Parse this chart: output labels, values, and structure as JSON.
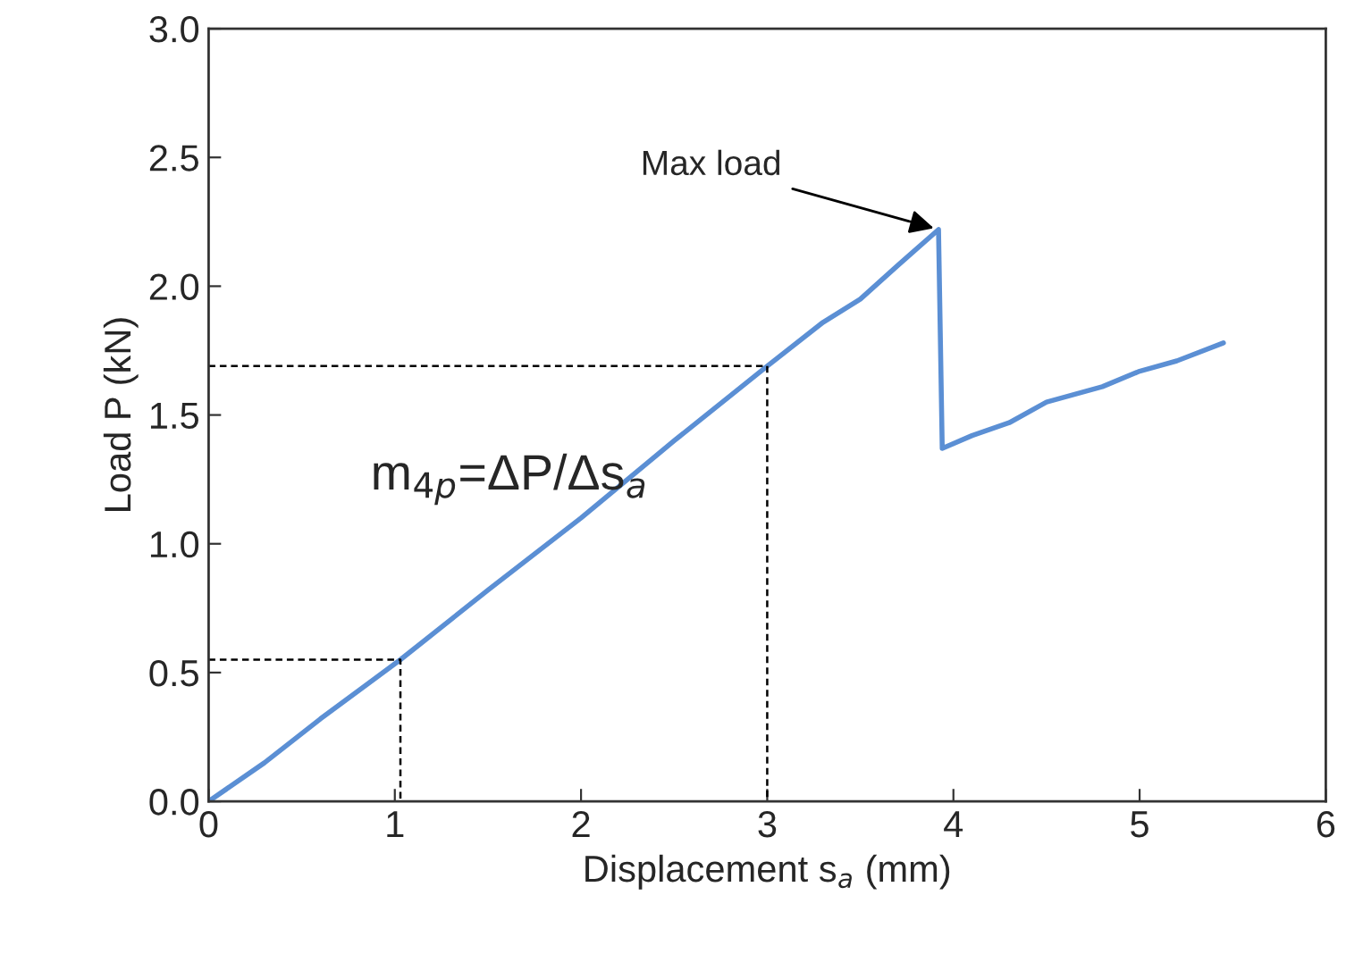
{
  "chart_data": {
    "type": "line",
    "xlabel": "Displacement s$_{a}$ (mm)",
    "ylabel": "Load P (kN)",
    "xlim": [
      0,
      6
    ],
    "ylim": [
      0,
      3.0
    ],
    "xticks": [
      0,
      1,
      2,
      3,
      4,
      5,
      6
    ],
    "yticks": [
      {
        "value": 0,
        "label": "0.0"
      },
      {
        "value": 0.5,
        "label": "0.5"
      },
      {
        "value": 1,
        "label": "1.0"
      },
      {
        "value": 1.5,
        "label": "1.5"
      },
      {
        "value": 2,
        "label": "2.0"
      },
      {
        "value": 2.5,
        "label": "2.5"
      },
      {
        "value": 3,
        "label": "3.0"
      }
    ],
    "grid": false,
    "legend": false,
    "series": [
      {
        "color": "#5b8fd4",
        "x": [
          0,
          0.3,
          0.6,
          1.03,
          1.5,
          2.0,
          2.5,
          3.0,
          3.3,
          3.5,
          3.7,
          3.92,
          3.94,
          4.1,
          4.3,
          4.5,
          4.8,
          5.0,
          5.2,
          5.45
        ],
        "values": [
          0,
          0.15,
          0.32,
          0.55,
          0.82,
          1.1,
          1.4,
          1.69,
          1.86,
          1.95,
          2.08,
          2.22,
          1.37,
          1.42,
          1.47,
          1.55,
          1.61,
          1.67,
          1.71,
          1.78
        ]
      },
      {
        "color": "#000000",
        "line_style": "dashed",
        "x": [
          0,
          1.03,
          1.03
        ],
        "values": [
          0.55,
          0.55,
          0
        ]
      },
      {
        "color": "#000000",
        "line_style": "dashed",
        "x": [
          0,
          3.0,
          3.0
        ],
        "values": [
          1.69,
          1.69,
          0
        ]
      }
    ],
    "annotations": [
      {
        "text": "Max load",
        "x": 3.92,
        "y": 2.22
      },
      "m$_{4p}$=ΔP/Δs$_{a}$"
    ]
  }
}
